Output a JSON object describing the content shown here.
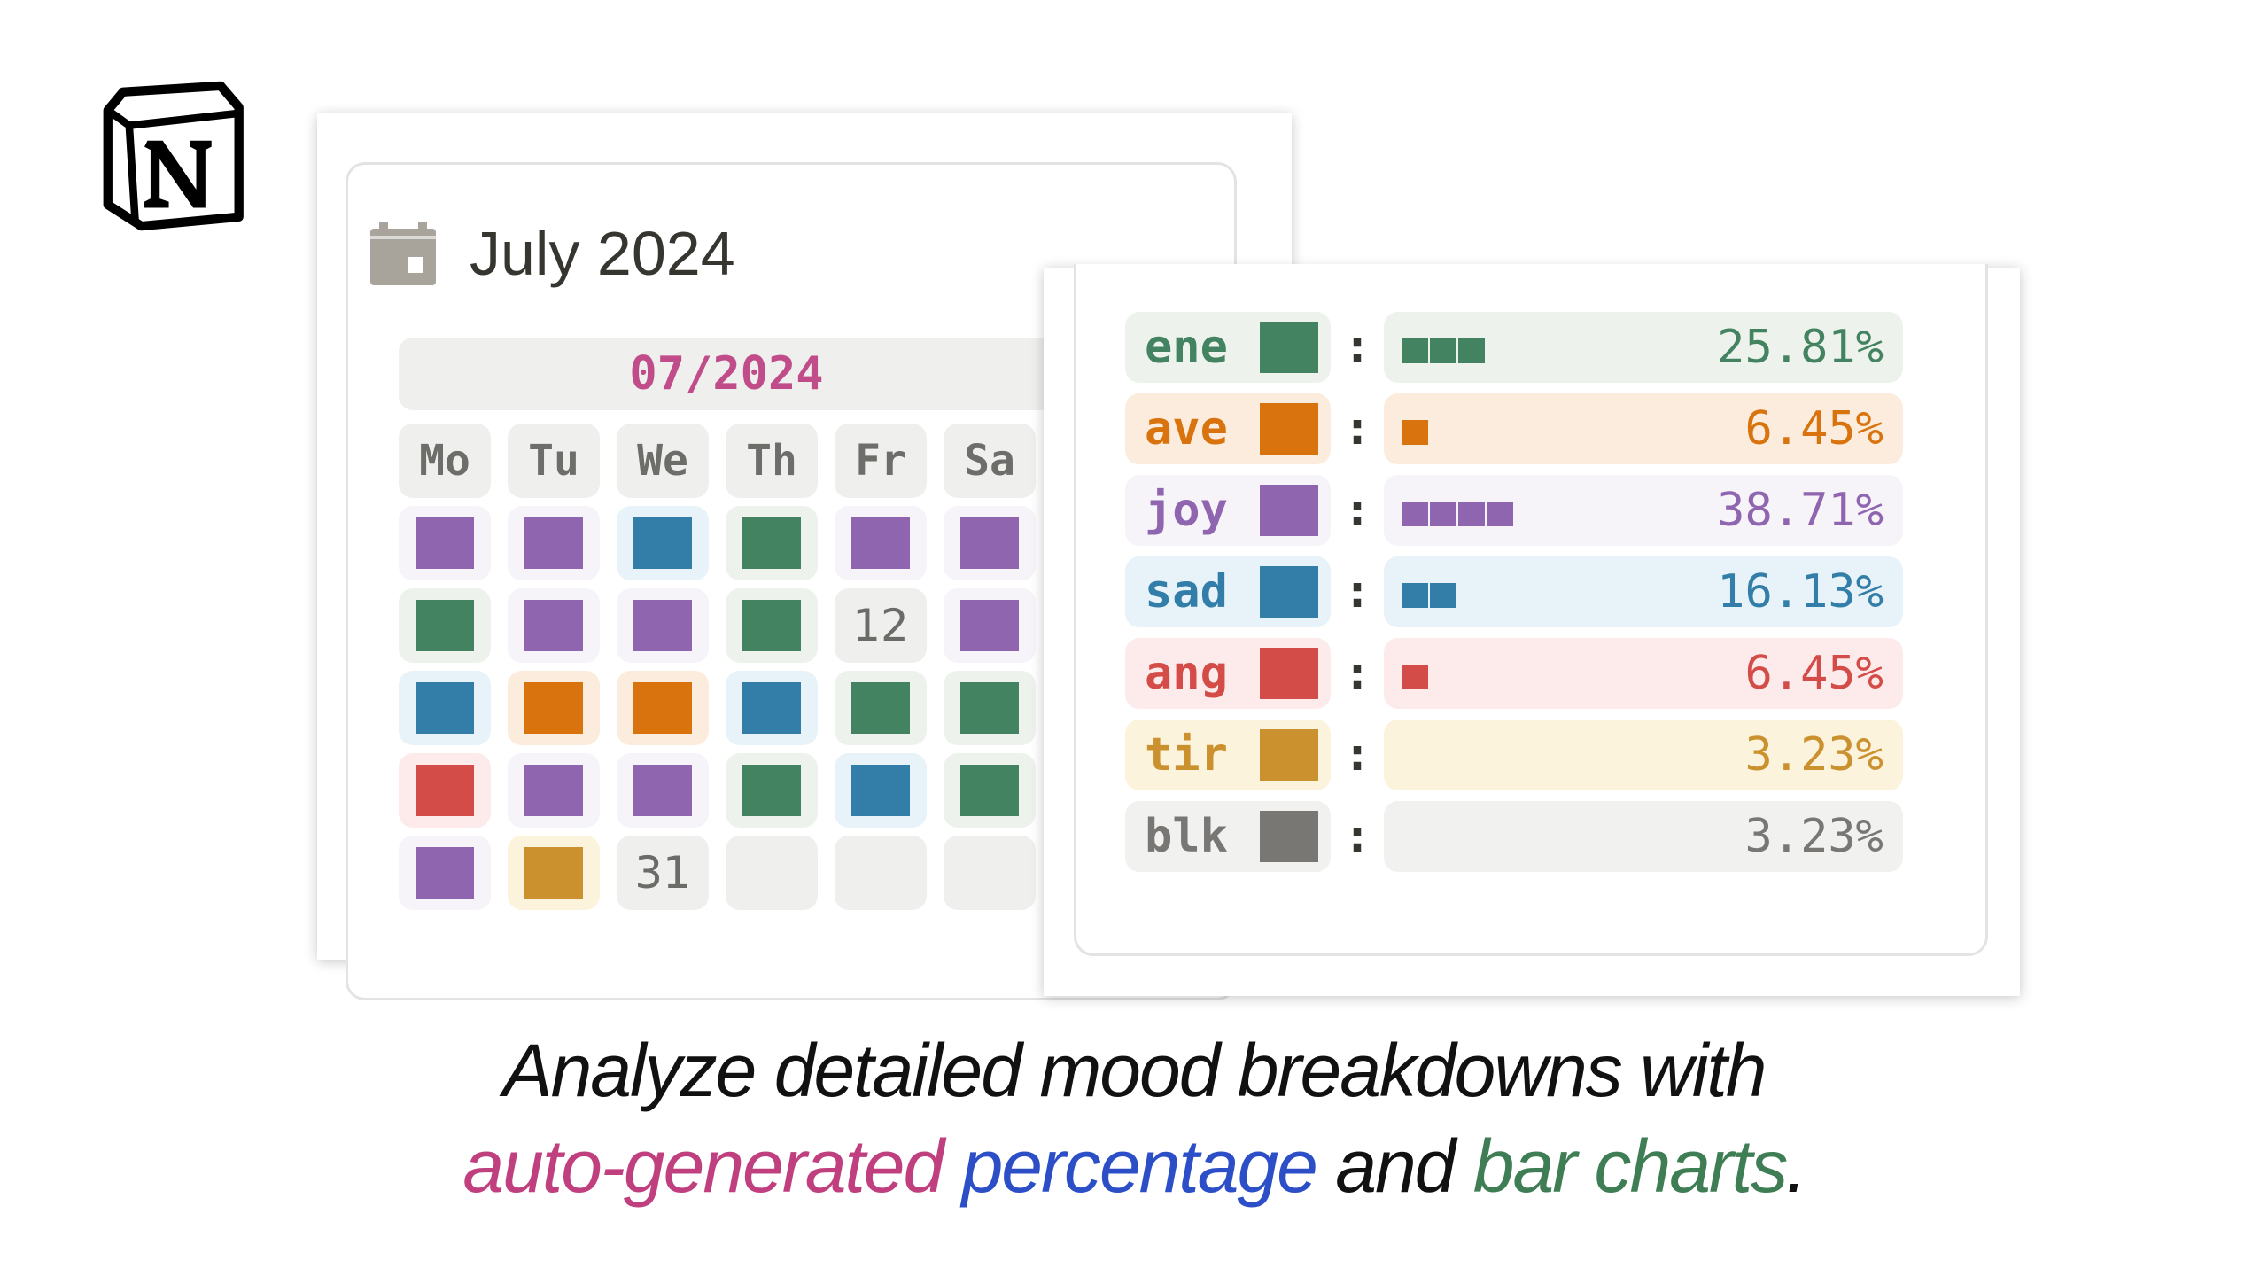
{
  "calendar": {
    "title": "July 2024",
    "month_label": "07/2024",
    "weekdays": [
      "Mo",
      "Tu",
      "We",
      "Th",
      "Fr",
      "Sa"
    ],
    "weeks": [
      [
        {
          "mood": "joy"
        },
        {
          "mood": "joy"
        },
        {
          "mood": "sad"
        },
        {
          "mood": "ene"
        },
        {
          "mood": "joy"
        },
        {
          "mood": "joy"
        }
      ],
      [
        {
          "mood": "ene"
        },
        {
          "mood": "joy"
        },
        {
          "mood": "joy"
        },
        {
          "mood": "ene"
        },
        {
          "day": "12"
        },
        {
          "mood": "joy"
        }
      ],
      [
        {
          "mood": "sad"
        },
        {
          "mood": "ave"
        },
        {
          "mood": "ave"
        },
        {
          "mood": "sad"
        },
        {
          "mood": "ene"
        },
        {
          "mood": "ene"
        }
      ],
      [
        {
          "mood": "ang"
        },
        {
          "mood": "joy"
        },
        {
          "mood": "joy"
        },
        {
          "mood": "ene"
        },
        {
          "mood": "sad"
        },
        {
          "mood": "ene"
        }
      ],
      [
        {
          "mood": "joy"
        },
        {
          "mood": "tir"
        },
        {
          "day": "31"
        },
        {},
        {},
        {}
      ]
    ]
  },
  "moods": {
    "ene": {
      "fg": "#448361",
      "bg": "#edf3ec"
    },
    "ave": {
      "fg": "#d9730d",
      "bg": "#fbecdd"
    },
    "joy": {
      "fg": "#9065b0",
      "bg": "#f6f3f9"
    },
    "sad": {
      "fg": "#337ea9",
      "bg": "#e7f3f8"
    },
    "ang": {
      "fg": "#d44c47",
      "bg": "#fdebec"
    },
    "tir": {
      "fg": "#cb912f",
      "bg": "#fbf3db"
    },
    "blk": {
      "fg": "#787774",
      "bg": "#f1f1ef"
    }
  },
  "stats": [
    {
      "key": "ene",
      "label": "ene",
      "blocks": 3,
      "percent": "25.81%",
      "percent_value": 25.81
    },
    {
      "key": "ave",
      "label": "ave",
      "blocks": 1,
      "percent": "6.45%",
      "percent_value": 6.45
    },
    {
      "key": "joy",
      "label": "joy",
      "blocks": 4,
      "percent": "38.71%",
      "percent_value": 38.71
    },
    {
      "key": "sad",
      "label": "sad",
      "blocks": 2,
      "percent": "16.13%",
      "percent_value": 16.13
    },
    {
      "key": "ang",
      "label": "ang",
      "blocks": 1,
      "percent": "6.45%",
      "percent_value": 6.45
    },
    {
      "key": "tir",
      "label": "tir",
      "blocks": 0,
      "percent": "3.23%",
      "percent_value": 3.23
    },
    {
      "key": "blk",
      "label": "blk",
      "blocks": 0,
      "percent": "3.23%",
      "percent_value": 3.23
    }
  ],
  "separator": ":",
  "caption": {
    "line1": "Analyze detailed mood breakdowns with",
    "line2_part1": "auto-generated",
    "line2_part2": "percentage",
    "line2_part3": "and",
    "line2_part4": "bar charts",
    "line2_part5": ".",
    "color_pink": "#c0407f",
    "color_blue": "#2c4fc7",
    "color_green": "#3f7d55"
  }
}
